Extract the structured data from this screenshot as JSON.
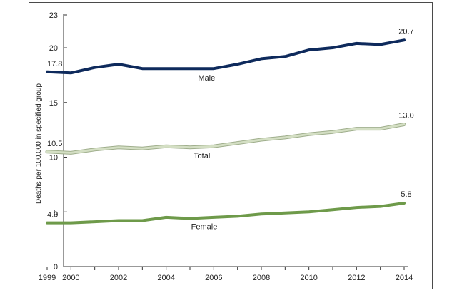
{
  "chart_data": {
    "type": "line",
    "title": "",
    "xlabel": "",
    "ylabel": "Deaths per 100,000 in specified group",
    "x": [
      1999,
      2000,
      2001,
      2002,
      2003,
      2004,
      2005,
      2006,
      2007,
      2008,
      2009,
      2010,
      2011,
      2012,
      2013,
      2014
    ],
    "x_ticks": [
      "1999",
      "2000",
      "2002",
      "2004",
      "2006",
      "2008",
      "2010",
      "2012",
      "2014"
    ],
    "y_ticks": [
      "0",
      "5",
      "10",
      "15",
      "20",
      "23"
    ],
    "ylim": [
      0,
      23
    ],
    "xlim": [
      1999,
      2014
    ],
    "grid": false,
    "legend": "none (series labeled inline)",
    "series": [
      {
        "name": "Male",
        "color": "#0e2a5c",
        "values": [
          17.8,
          17.7,
          18.2,
          18.5,
          18.1,
          18.1,
          18.1,
          18.1,
          18.5,
          19.0,
          19.2,
          19.8,
          20.0,
          20.4,
          20.3,
          20.7
        ],
        "start_label": "17.8",
        "end_label": "20.7"
      },
      {
        "name": "Total",
        "color": "#d4dfc4",
        "values": [
          10.5,
          10.4,
          10.7,
          10.9,
          10.8,
          11.0,
          10.9,
          11.0,
          11.3,
          11.6,
          11.8,
          12.1,
          12.3,
          12.6,
          12.6,
          13.0
        ],
        "start_label": "10.5",
        "end_label": "13.0"
      },
      {
        "name": "Female",
        "color": "#6e9a4a",
        "values": [
          4.0,
          4.0,
          4.1,
          4.2,
          4.2,
          4.5,
          4.4,
          4.5,
          4.6,
          4.8,
          4.9,
          5.0,
          5.2,
          5.4,
          5.5,
          5.8
        ],
        "start_label": "4.0",
        "end_label": "5.8"
      }
    ]
  }
}
